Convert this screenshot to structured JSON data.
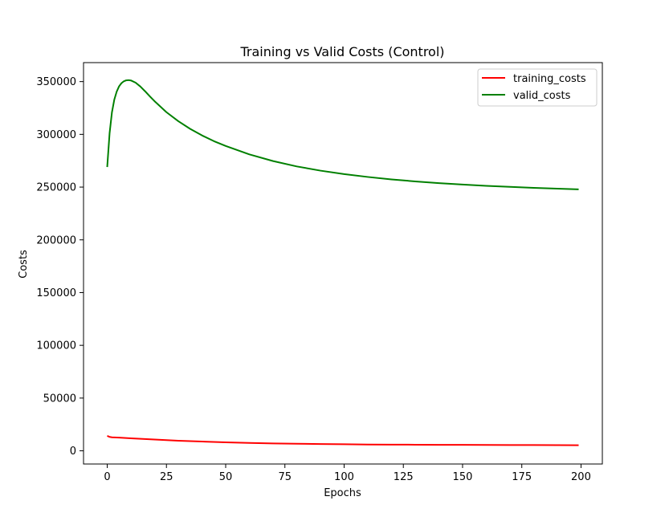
{
  "chart_data": {
    "type": "line",
    "title": "Training vs Valid Costs (Control)",
    "xlabel": "Epochs",
    "ylabel": "Costs",
    "xlim": [
      -10,
      209
    ],
    "ylim": [
      -12500,
      368000
    ],
    "xticks": [
      0,
      25,
      50,
      75,
      100,
      125,
      150,
      175,
      200
    ],
    "yticks": [
      0,
      50000,
      100000,
      150000,
      200000,
      250000,
      300000,
      350000
    ],
    "grid": false,
    "legend_position": "top-right",
    "series": [
      {
        "name": "training_costs",
        "color": "#ff0000",
        "x": [
          0,
          1,
          2,
          5,
          10,
          15,
          20,
          25,
          30,
          40,
          50,
          60,
          70,
          80,
          90,
          100,
          110,
          120,
          130,
          140,
          150,
          160,
          170,
          180,
          190,
          199
        ],
        "y": [
          14200,
          13200,
          12800,
          12500,
          11900,
          11300,
          10700,
          10100,
          9600,
          8800,
          8000,
          7500,
          7000,
          6700,
          6400,
          6200,
          6000,
          5900,
          5800,
          5700,
          5650,
          5600,
          5500,
          5450,
          5400,
          5300
        ]
      },
      {
        "name": "valid_costs",
        "color": "#008000",
        "x": [
          0,
          1,
          2,
          3,
          4,
          5,
          6,
          7,
          8,
          9,
          10,
          12,
          14,
          16,
          18,
          20,
          25,
          30,
          35,
          40,
          45,
          50,
          60,
          70,
          80,
          90,
          100,
          110,
          120,
          130,
          140,
          150,
          160,
          170,
          180,
          190,
          199
        ],
        "y": [
          269000,
          301000,
          321000,
          333000,
          340500,
          345500,
          348500,
          350300,
          351200,
          351400,
          351100,
          349000,
          345300,
          340800,
          336000,
          331400,
          321000,
          312500,
          305200,
          299000,
          293600,
          289000,
          281000,
          274700,
          269600,
          265600,
          262300,
          259600,
          257300,
          255400,
          253800,
          252400,
          251200,
          250200,
          249300,
          248500,
          247900
        ]
      }
    ]
  }
}
